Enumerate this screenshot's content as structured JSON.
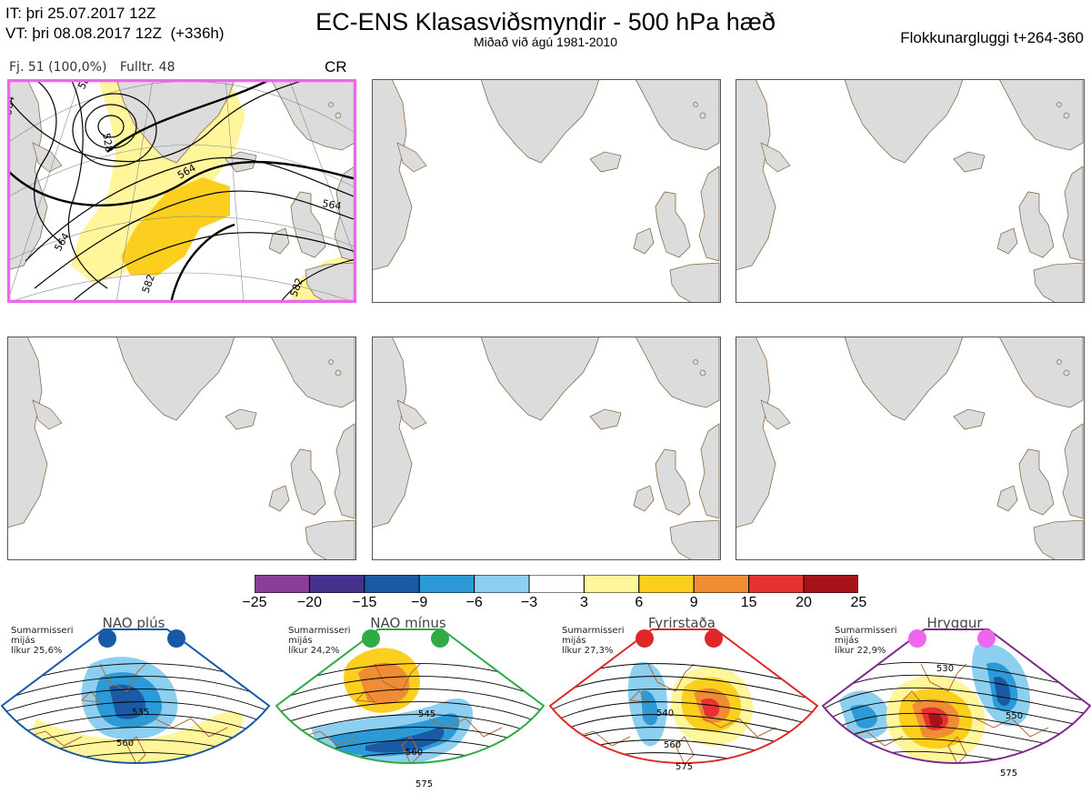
{
  "header": {
    "initial_time": "IT: þri 25.07.2017 12Z",
    "valid_time": "VT: þri 08.08.2017 12Z  (+336h)",
    "title": "EC-ENS Klasasviðsmyndir - 500 hPa hæð",
    "subtitle": "Miðað við ágú 1981-2010",
    "window": "Flokkunargluggi t+264-360"
  },
  "panel1": {
    "members": "Fj. 51 (100,0%)",
    "control": "Fulltr. 48",
    "regime_code": "CR",
    "contour_labels": [
      "564",
      "582",
      "564",
      "582",
      "564",
      "528",
      "564",
      "582"
    ],
    "highlight_color": "#ee66ee"
  },
  "colorbar": {
    "ticks": [
      "−25",
      "−20",
      "−15",
      "−9",
      "−6",
      "−3",
      "3",
      "6",
      "9",
      "15",
      "20",
      "25"
    ],
    "colors": [
      "#8a3e97",
      "#46318f",
      "#1a5aa5",
      "#2d9ad8",
      "#8dcff0",
      "#ffffff",
      "#fff59a",
      "#fccf1f",
      "#f08c34",
      "#e63232",
      "#a61318"
    ]
  },
  "clusters": [
    {
      "name": "NAO plús",
      "season": "Sumarmisseri",
      "mid": "mijás",
      "likelihood": "líkur 25,6%",
      "border_color": "#1659a6",
      "dot_color": "#1659a6",
      "labels": [
        "535",
        "560"
      ]
    },
    {
      "name": "NAO mínus",
      "season": "Sumarmisseri",
      "mid": "mijás",
      "likelihood": "líkur 24,2%",
      "border_color": "#2faa44",
      "dot_color": "#2faa44",
      "labels": [
        "545",
        "560",
        "575"
      ]
    },
    {
      "name": "Fyrirstaða",
      "season": "Sumarmisseri",
      "mid": "mijás",
      "likelihood": "líkur 27,3%",
      "border_color": "#e02828",
      "dot_color": "#e02828",
      "labels": [
        "540",
        "560",
        "575"
      ]
    },
    {
      "name": "Hryggur",
      "season": "Sumarmisseri",
      "mid": "mijás",
      "likelihood": "líkur 22,9%",
      "border_color": "#7e2a8c",
      "dot_color": "#ee66ee",
      "labels": [
        "530",
        "550",
        "575"
      ]
    }
  ]
}
